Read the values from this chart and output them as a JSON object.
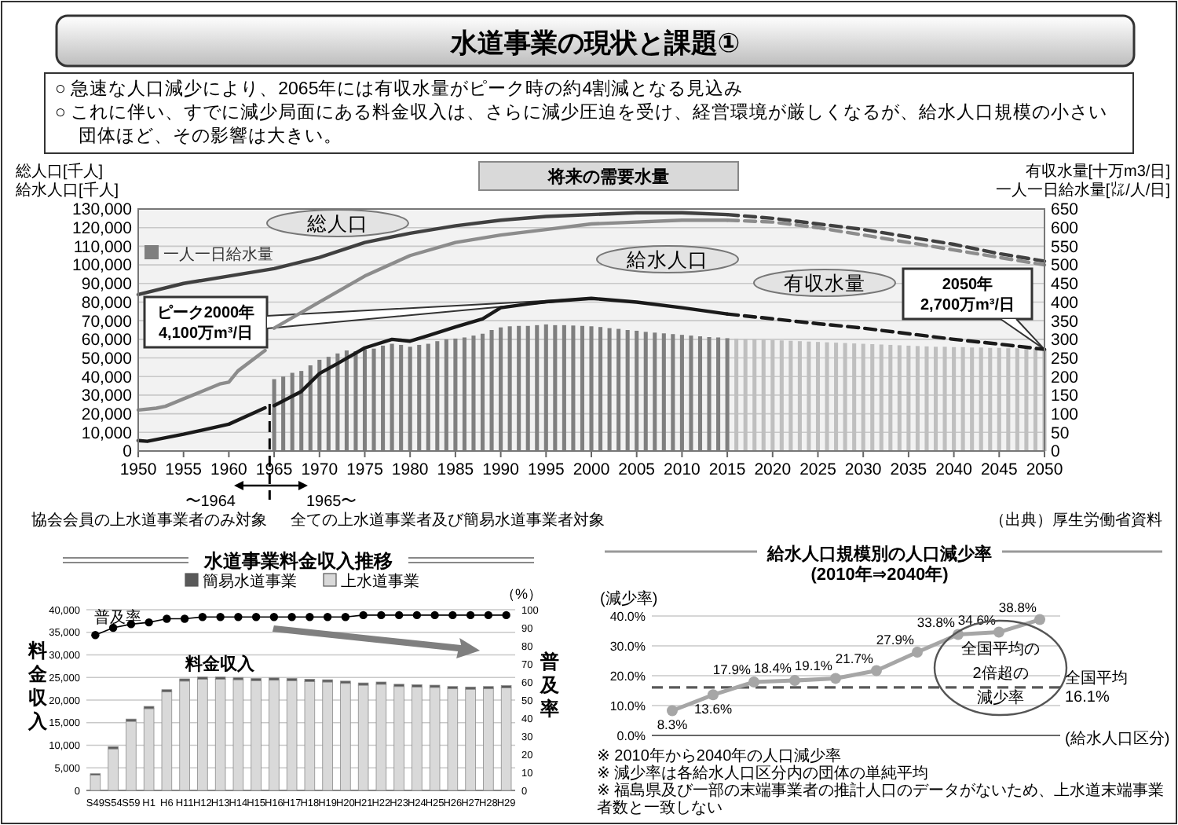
{
  "chart_data": [
    {
      "type": "line",
      "title": "水道事業の現状と課題①",
      "subtitle": "将来の需要水量",
      "annotations": [
        "○ 急速な人口減少により、2065年には有収水量がピーク時の約4割減となる見込み",
        "○ これに伴い、すでに減少局面にある料金収入は、さらに減少圧迫を受け、経営環境が厳しくなるが、給水人口規模の小さい団体ほど、その影響は大きい。",
        {
          "text": "ピーク2000年\n4,100万m³/日",
          "x": 2000,
          "y": 82000
        },
        {
          "text": "2050年\n2,700万m³/日",
          "x": 2050,
          "y": 54600
        },
        "〜1964",
        "協会会員の上水道事業者のみ対象",
        "1965〜",
        "全ての上水道事業者及び簡易水道事業者対象",
        "（出典）厚生労働省資料"
      ],
      "ylabel": "総人口[千人]\n給水人口[千人]",
      "y2label": "有収水量[十万m3/日]\n一人一日給水量[㍑/人/日]",
      "xlim": [
        1950,
        2050
      ],
      "xticks": [
        1950,
        1955,
        1960,
        1965,
        1970,
        1975,
        1980,
        1985,
        1990,
        1995,
        2000,
        2005,
        2010,
        2015,
        2020,
        2025,
        2030,
        2035,
        2040,
        2045,
        2050
      ],
      "ylim": [
        0,
        130000
      ],
      "yticks": [
        {
          "value": 0,
          "label": "0"
        },
        {
          "value": 10000,
          "label": "10,000"
        },
        {
          "value": 20000,
          "label": "20,000"
        },
        {
          "value": 30000,
          "label": "30,000"
        },
        {
          "value": 40000,
          "label": "40,000"
        },
        {
          "value": 50000,
          "label": "50,000"
        },
        {
          "value": 60000,
          "label": "60,000"
        },
        {
          "value": 70000,
          "label": "70,000"
        },
        {
          "value": 80000,
          "label": "80,000"
        },
        {
          "value": 90000,
          "label": "90,000"
        },
        {
          "value": 100000,
          "label": "100,000"
        },
        {
          "value": 110000,
          "label": "110,000"
        },
        {
          "value": 120000,
          "label": "120,000"
        },
        {
          "value": 130000,
          "label": "130,000"
        }
      ],
      "y2lim": [
        0,
        650
      ],
      "y2ticks": [
        0,
        50,
        100,
        150,
        200,
        250,
        300,
        350,
        400,
        450,
        500,
        550,
        600,
        650
      ],
      "grid": "y",
      "ref_lines": [
        {
          "axis": "x",
          "value": 1964.5,
          "line_style": "dashed"
        }
      ],
      "series": [
        {
          "name": "一人一日給水量",
          "type": "bar",
          "axis": "y2",
          "color": "#7f7f7f",
          "x": [
            1965,
            1966,
            1967,
            1968,
            1969,
            1970,
            1971,
            1972,
            1973,
            1974,
            1975,
            1976,
            1977,
            1978,
            1979,
            1980,
            1981,
            1982,
            1983,
            1984,
            1985,
            1986,
            1987,
            1988,
            1989,
            1990,
            1991,
            1992,
            1993,
            1994,
            1995,
            1996,
            1997,
            1998,
            1999,
            2000,
            2001,
            2002,
            2003,
            2004,
            2005,
            2006,
            2007,
            2008,
            2009,
            2010,
            2011,
            2012,
            2013,
            2014,
            2015
          ],
          "values": [
            193,
            200,
            210,
            215,
            230,
            245,
            253,
            262,
            270,
            268,
            273,
            275,
            283,
            288,
            285,
            280,
            285,
            288,
            295,
            300,
            302,
            305,
            310,
            315,
            325,
            332,
            335,
            336,
            336,
            338,
            340,
            338,
            338,
            337,
            336,
            335,
            333,
            330,
            328,
            325,
            323,
            320,
            318,
            316,
            314,
            312,
            310,
            308,
            306,
            305,
            303
          ]
        },
        {
          "type": "bar",
          "axis": "y2",
          "color": "#bfbfbf",
          "x": [
            2016,
            2017,
            2018,
            2019,
            2020,
            2021,
            2022,
            2023,
            2024,
            2025,
            2026,
            2027,
            2028,
            2029,
            2030,
            2031,
            2032,
            2033,
            2034,
            2035,
            2036,
            2037,
            2038,
            2039,
            2040,
            2041,
            2042,
            2043,
            2044,
            2045,
            2046,
            2047,
            2048,
            2049,
            2050
          ],
          "values": [
            302,
            301,
            300,
            299,
            298,
            297,
            296,
            295,
            294,
            293,
            292,
            291,
            290,
            289,
            288,
            287,
            286,
            285,
            284,
            283,
            282,
            281,
            280,
            280,
            279,
            279,
            278,
            278,
            277,
            277,
            276,
            276,
            275,
            275,
            274
          ]
        },
        {
          "name": "総人口",
          "color": "#404040",
          "line_style": "solid",
          "x": [
            1950,
            1955,
            1960,
            1965,
            1970,
            1975,
            1980,
            1985,
            1990,
            1995,
            2000,
            2005,
            2010,
            2015
          ],
          "values": [
            84000,
            90000,
            94000,
            98000,
            104000,
            112000,
            117000,
            121000,
            124000,
            126000,
            127000,
            128000,
            128000,
            127000
          ]
        },
        {
          "color": "#404040",
          "line_style": "dashed",
          "x": [
            2015,
            2020,
            2025,
            2030,
            2035,
            2040,
            2045,
            2050
          ],
          "values": [
            127000,
            125000,
            122000,
            119000,
            115000,
            111000,
            106000,
            102000
          ]
        },
        {
          "name": "給水人口",
          "color": "#8c8c8c",
          "line_style": "solid",
          "x": [
            1965,
            1970,
            1975,
            1980,
            1985,
            1990,
            1995,
            2000,
            2005,
            2010,
            2015
          ],
          "values": [
            66000,
            80000,
            94000,
            105000,
            112000,
            116000,
            119000,
            122000,
            123000,
            124000,
            124000
          ]
        },
        {
          "color": "#8c8c8c",
          "line_style": "solid",
          "x": [
            1950,
            1952,
            1953,
            1955,
            1957,
            1959,
            1960,
            1961,
            1964
          ],
          "values": [
            22000,
            23000,
            24000,
            28000,
            32000,
            36000,
            37000,
            43000,
            54000
          ]
        },
        {
          "color": "#8c8c8c",
          "line_style": "dashed",
          "x": [
            2015,
            2020,
            2025,
            2030,
            2035,
            2040,
            2045,
            2050
          ],
          "values": [
            124000,
            123000,
            120000,
            116000,
            112000,
            108000,
            104000,
            100000
          ]
        },
        {
          "name": "有収水量",
          "axis": "y2",
          "color": "#1a1a1a",
          "line_style": "solid",
          "x": [
            1965,
            1968,
            1970,
            1972,
            1975,
            1978,
            1980,
            1982,
            1985,
            1988,
            1990,
            1993,
            1995,
            2000,
            2005,
            2010,
            2015
          ],
          "values": [
            122,
            160,
            208,
            235,
            277,
            300,
            295,
            310,
            333,
            355,
            385,
            395,
            401,
            410,
            400,
            385,
            368
          ]
        },
        {
          "axis": "y2",
          "color": "#1a1a1a",
          "line_style": "solid",
          "x": [
            1950,
            1951,
            1955,
            1960,
            1964
          ],
          "values": [
            28,
            26,
            45,
            72,
            116
          ]
        },
        {
          "axis": "y2",
          "color": "#1a1a1a",
          "line_style": "dashed",
          "x": [
            2015,
            2020,
            2025,
            2030,
            2035,
            2040,
            2045,
            2050
          ],
          "values": [
            368,
            355,
            342,
            330,
            315,
            300,
            287,
            273
          ]
        }
      ]
    },
    {
      "type": "bar",
      "title": "水道事業料金収入推移",
      "stacked": true,
      "legend": "top",
      "grid": "y",
      "categories": [
        "S49",
        "S54",
        "S59",
        "H1",
        "H6",
        "H11",
        "H12",
        "H13",
        "H14",
        "H15",
        "H16",
        "H17",
        "H18",
        "H19",
        "H20",
        "H21",
        "H22",
        "H23",
        "H24",
        "H25",
        "H26",
        "H27",
        "H28",
        "H29"
      ],
      "ylabel": "料金収入",
      "y2label": "普及率",
      "annotations": [
        "（%）",
        "料金収入"
      ],
      "ylim": [
        0,
        40000
      ],
      "yticks": [
        {
          "value": 0,
          "label": "0"
        },
        {
          "value": 5000,
          "label": "5,000"
        },
        {
          "value": 10000,
          "label": "10,000"
        },
        {
          "value": 15000,
          "label": "15,000"
        },
        {
          "value": 20000,
          "label": "20,000"
        },
        {
          "value": 25000,
          "label": "25,000"
        },
        {
          "value": 30000,
          "label": "30,000"
        },
        {
          "value": 35000,
          "label": "35,000"
        },
        {
          "value": 40000,
          "label": "40,000"
        }
      ],
      "y2lim": [
        0,
        100
      ],
      "y2ticks": [
        0,
        10,
        20,
        30,
        40,
        50,
        60,
        70,
        80,
        90,
        100
      ],
      "series": [
        {
          "name": "上水道事業",
          "color": "#d9d9d9",
          "values": [
            3400,
            9200,
            15300,
            18100,
            21800,
            24200,
            24600,
            24600,
            24500,
            24300,
            24400,
            24300,
            24100,
            24000,
            23700,
            23300,
            23500,
            23000,
            22900,
            22800,
            22500,
            22400,
            22500,
            22700
          ]
        },
        {
          "name": "簡易水道事業",
          "color": "#595959",
          "values": [
            300,
            500,
            500,
            500,
            500,
            500,
            500,
            500,
            500,
            500,
            500,
            500,
            500,
            500,
            500,
            500,
            500,
            500,
            500,
            500,
            500,
            500,
            500,
            500
          ]
        },
        {
          "name": "普及率",
          "type": "line",
          "axis": "y2",
          "color": "#000000",
          "marker": "circle",
          "values": [
            86,
            90,
            92,
            93,
            95,
            95,
            96,
            96,
            96,
            96,
            96,
            96,
            96,
            96,
            96,
            97,
            97,
            97,
            97,
            97,
            97,
            97,
            97,
            97
          ]
        }
      ]
    },
    {
      "type": "line",
      "title": "給水人口規模別の人口減少率\n(2010年⇒2040年)",
      "ylabel": "(減少率)",
      "xlabel": "(給水人口区分)",
      "grid": "y",
      "marker": "circle",
      "color": "#a6a6a6",
      "categories": [
        null,
        null,
        null,
        null,
        null,
        null,
        null,
        null,
        null,
        null
      ],
      "values": [
        8.3,
        13.6,
        17.9,
        18.4,
        19.1,
        21.7,
        27.9,
        33.8,
        34.6,
        38.8
      ],
      "value_labels": [
        "8.3%",
        "13.6%",
        "17.9%",
        "18.4%",
        "19.1%",
        "21.7%",
        "27.9%",
        "33.8%",
        "34.6%",
        "38.8%"
      ],
      "ylim": [
        0,
        40
      ],
      "yticks": [
        {
          "value": 0,
          "label": "0.0%"
        },
        {
          "value": 10,
          "label": "10.0%"
        },
        {
          "value": 20,
          "label": "20.0%"
        },
        {
          "value": 30,
          "label": "30.0%"
        },
        {
          "value": 40,
          "label": "40.0%"
        }
      ],
      "ref_lines": [
        {
          "axis": "y",
          "value": 16.1,
          "label": "全国平均\n16.1%",
          "line_style": "dashed",
          "color": "#595959"
        }
      ],
      "annotations": [
        "全国平均の2倍超の減少率",
        "※ 2010年から2040年の人口減少率",
        "※ 減少率は各給水人口区分内の団体の単純平均",
        "※ 福島県及び一部の末端事業者の推計人口のデータがないため、上水道末端事業者数と一致しない"
      ]
    }
  ]
}
